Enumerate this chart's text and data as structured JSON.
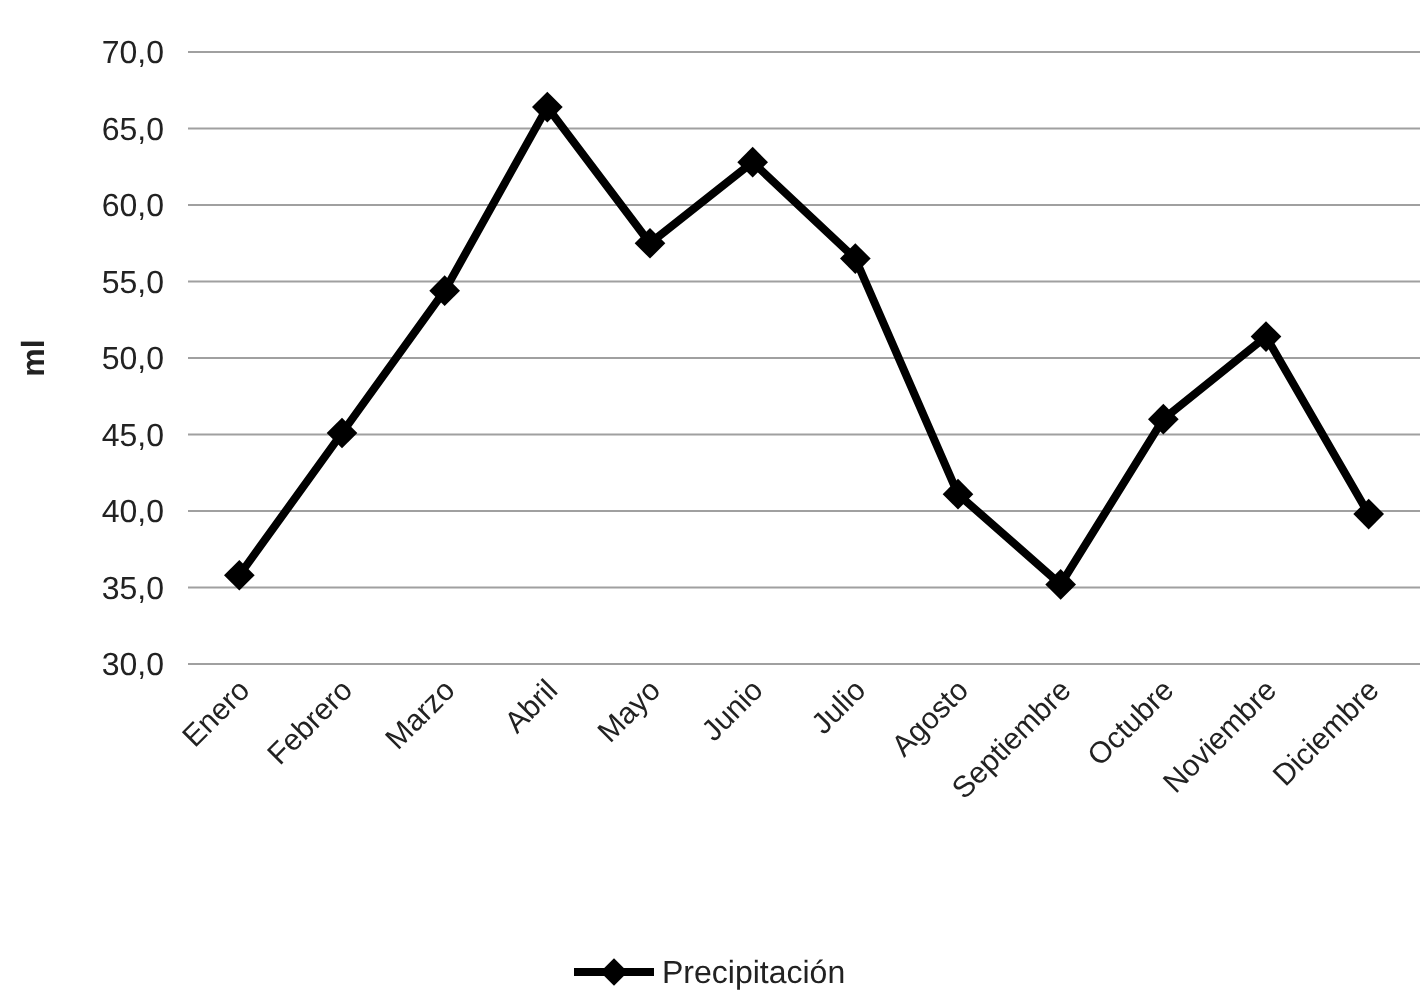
{
  "chart_data": {
    "type": "line",
    "ylabel": "ml",
    "categories": [
      "Enero",
      "Febrero",
      "Marzo",
      "Abril",
      "Mayo",
      "Junio",
      "Julio",
      "Agosto",
      "Septiembre",
      "Octubre",
      "Noviembre",
      "Diciembre"
    ],
    "series": [
      {
        "name": "Precipitación",
        "color": "#000000",
        "values": [
          35.8,
          45.1,
          54.4,
          66.4,
          57.5,
          62.8,
          56.5,
          41.1,
          35.2,
          46.0,
          51.4,
          39.8
        ]
      }
    ],
    "ylim": [
      30,
      70
    ],
    "yticks": [
      {
        "value": 30,
        "label": "30,0"
      },
      {
        "value": 35,
        "label": "35,0"
      },
      {
        "value": 40,
        "label": "40,0"
      },
      {
        "value": 45,
        "label": "45,0"
      },
      {
        "value": 50,
        "label": "50,0"
      },
      {
        "value": 55,
        "label": "55,0"
      },
      {
        "value": 60,
        "label": "60,0"
      },
      {
        "value": 65,
        "label": "65,0"
      },
      {
        "value": 70,
        "label": "70,0"
      }
    ],
    "grid": "y",
    "legend": "bottom",
    "marker": "diamond",
    "line_style": "solid"
  }
}
